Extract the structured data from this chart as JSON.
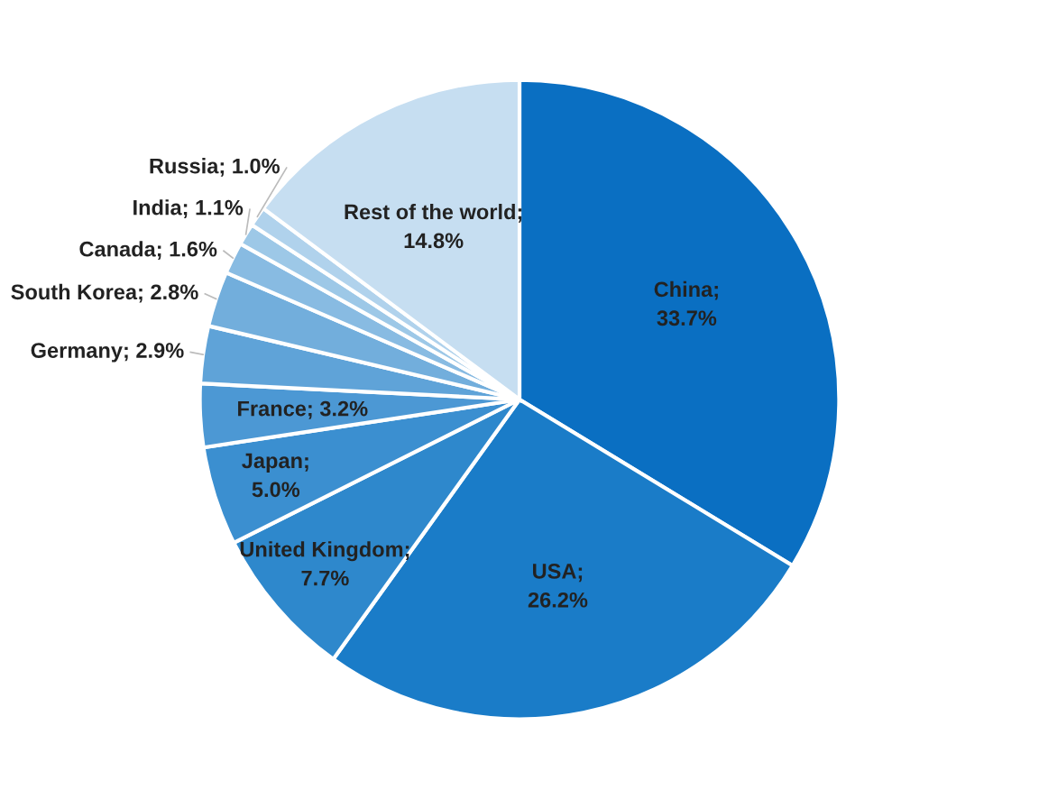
{
  "chart_data": {
    "type": "pie",
    "categories": [
      "China",
      "USA",
      "United Kingdom",
      "Japan",
      "France",
      "Germany",
      "South Korea",
      "Canada",
      "India",
      "Russia",
      "Rest of the world"
    ],
    "values": [
      33.7,
      26.2,
      7.7,
      5.0,
      3.2,
      2.9,
      2.8,
      1.6,
      1.1,
      1.0,
      14.8
    ],
    "value_labels": [
      ";\n33.7%",
      ";\n26.2%",
      ";\n7.7%",
      ";\n5.0%",
      "; 3.2%",
      "; 2.9%",
      "; 2.8%",
      "; 1.6%",
      "; 1.1%",
      "; 1.0%",
      ";\n14.8%"
    ],
    "colors": [
      "#0a6fc2",
      "#1a7cc8",
      "#2e88cc",
      "#3b8fd0",
      "#4c98d4",
      "#5fa3d8",
      "#72aedc",
      "#88bbe2",
      "#9dc8e7",
      "#b0d2ec",
      "#c6def1"
    ]
  }
}
